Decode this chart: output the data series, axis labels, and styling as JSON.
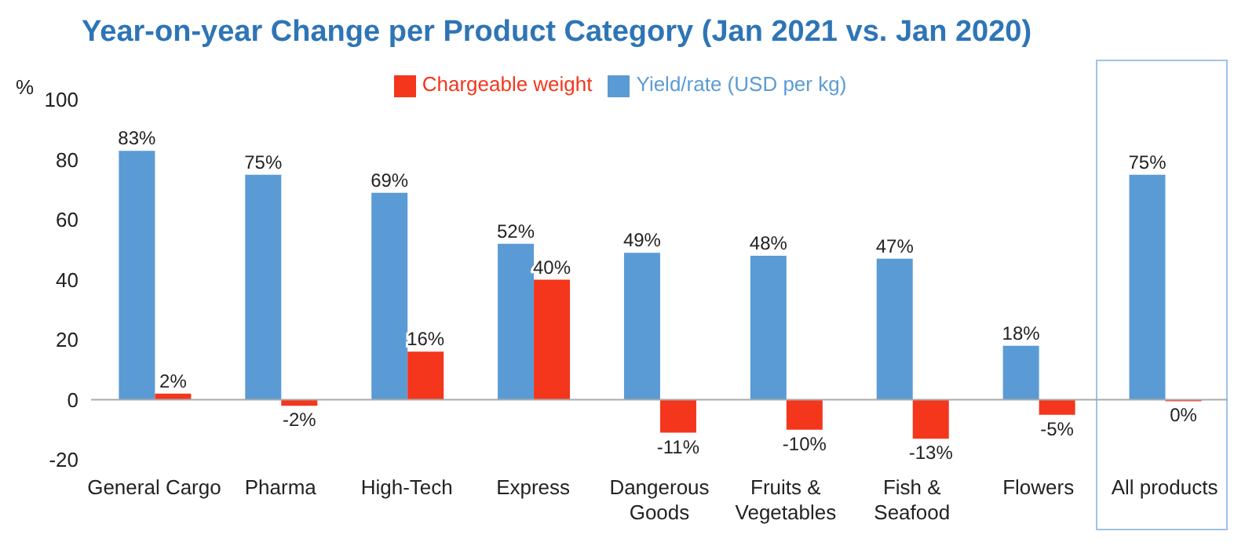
{
  "chart_data": {
    "type": "bar",
    "title": "Year-on-year Change per Product Category (Jan 2021 vs. Jan 2020)",
    "ylabel": "%",
    "categories": [
      "General Cargo",
      "Pharma",
      "High-Tech",
      "Express",
      "Dangerous Goods",
      "Fruits & Vegetables",
      "Fish & Seafood",
      "Flowers",
      "All products"
    ],
    "series": [
      {
        "name": "Yield/rate (USD per kg)",
        "color": "#5b9bd5",
        "values": [
          83,
          75,
          69,
          52,
          49,
          48,
          47,
          18,
          75
        ],
        "value_labels": [
          "83%",
          "75%",
          "69%",
          "52%",
          "49%",
          "48%",
          "47%",
          "18%",
          "75%"
        ]
      },
      {
        "name": "Chargeable weight",
        "color": "#f4361c",
        "values": [
          2,
          -2,
          16,
          40,
          -11,
          -10,
          -13,
          -5,
          -0.5
        ],
        "value_labels": [
          "2%",
          "-2%",
          "16%",
          "40%",
          "-11%",
          "-10%",
          "-13%",
          "-5%",
          "0%"
        ]
      }
    ],
    "ylim": [
      -20,
      100
    ],
    "yticks": [
      -20,
      0,
      20,
      40,
      60,
      80,
      100
    ],
    "ref_lines": [
      {
        "axis": "y",
        "value": 0,
        "color": "#aaaaaa"
      }
    ],
    "legend": "top"
  }
}
